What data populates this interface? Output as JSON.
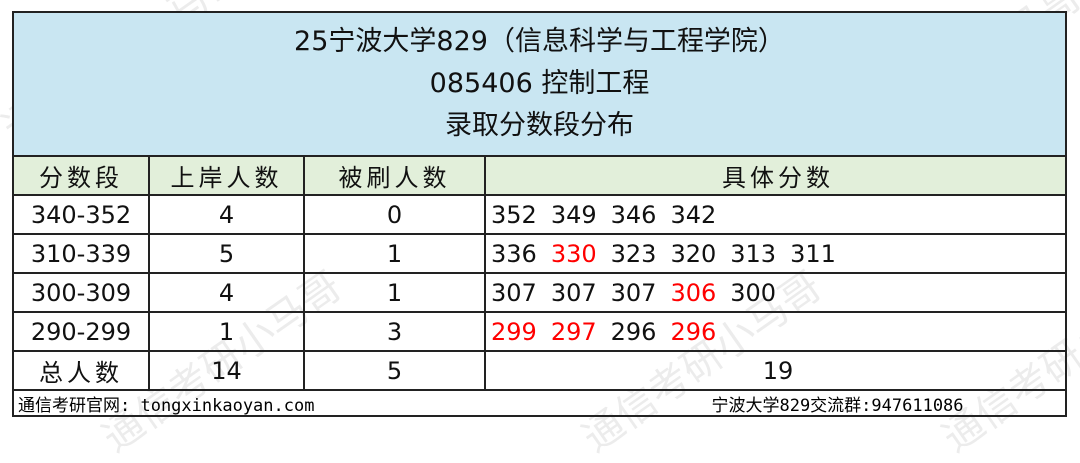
{
  "title": {
    "line1": "25宁波大学829（信息科学与工程学院）",
    "line2": "085406 控制工程",
    "line3": "录取分数段分布"
  },
  "headers": [
    "分数段",
    "上岸人数",
    "被刷人数",
    "具体分数"
  ],
  "rows": [
    {
      "range": "340-352",
      "admitted": "4",
      "rejected": "0",
      "scores": [
        {
          "v": "352",
          "red": false
        },
        {
          "v": "349",
          "red": false
        },
        {
          "v": "346",
          "red": false
        },
        {
          "v": "342",
          "red": false
        }
      ]
    },
    {
      "range": "310-339",
      "admitted": "5",
      "rejected": "1",
      "scores": [
        {
          "v": "336",
          "red": false
        },
        {
          "v": "330",
          "red": true
        },
        {
          "v": "323",
          "red": false
        },
        {
          "v": "320",
          "red": false
        },
        {
          "v": "313",
          "red": false
        },
        {
          "v": "311",
          "red": false
        }
      ]
    },
    {
      "range": "300-309",
      "admitted": "4",
      "rejected": "1",
      "scores": [
        {
          "v": "307",
          "red": false
        },
        {
          "v": "307",
          "red": false
        },
        {
          "v": "307",
          "red": false
        },
        {
          "v": "306",
          "red": true
        },
        {
          "v": "300",
          "red": false
        }
      ]
    },
    {
      "range": "290-299",
      "admitted": "1",
      "rejected": "3",
      "scores": [
        {
          "v": "299",
          "red": true
        },
        {
          "v": "297",
          "red": true
        },
        {
          "v": "296",
          "red": false
        },
        {
          "v": "296",
          "red": true
        }
      ]
    }
  ],
  "total": {
    "label": "总人数",
    "admitted": "14",
    "rejected": "5",
    "all": "19"
  },
  "footer": {
    "website": "通信考研官网: tongxinkaoyan.com",
    "group": "宁波大学829交流群:947611086"
  },
  "watermark": "通信考研小马哥",
  "colors": {
    "title_bg": "#c9e6f2",
    "header_bg": "#e2efda",
    "rejected_score": "#ff0000"
  }
}
